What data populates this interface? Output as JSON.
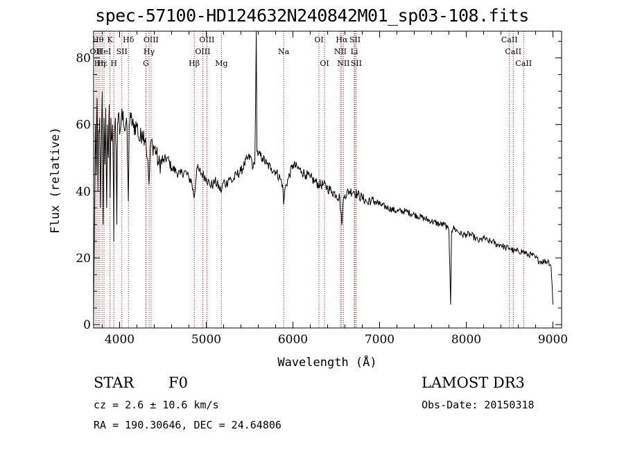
{
  "header": {
    "title": "spec-57100-HD124632N240842M01_sp03-108.fits"
  },
  "info": {
    "class_label": "STAR",
    "subclass": "F0",
    "survey": "LAMOST DR3",
    "cz": "cz = 2.6 ± 10.6 km/s",
    "obs_date": "Obs-Date: 20150318",
    "coords": "RA = 190.30646, DEC =  24.64806"
  },
  "colors": {
    "line_marker": "#cc0000",
    "spectrum": "#000000"
  },
  "chart_data": {
    "type": "line",
    "title": "spec-57100-HD124632N240842M01_sp03-108.fits",
    "xlabel": "Wavelength (Å)",
    "ylabel": "Flux (relative)",
    "xlim": [
      3700,
      9100
    ],
    "ylim": [
      -1,
      88
    ],
    "xticks": [
      4000,
      5000,
      6000,
      7000,
      8000,
      9000
    ],
    "yticks": [
      0,
      20,
      40,
      60,
      80
    ],
    "series": [
      {
        "name": "spectrum",
        "x": [
          3700,
          3710,
          3720,
          3730,
          3740,
          3750,
          3760,
          3770,
          3780,
          3790,
          3800,
          3810,
          3820,
          3830,
          3840,
          3850,
          3860,
          3870,
          3880,
          3890,
          3900,
          3910,
          3920,
          3930,
          3933,
          3940,
          3950,
          3960,
          3968,
          3975,
          3985,
          4000,
          4020,
          4040,
          4060,
          4080,
          4101,
          4110,
          4130,
          4160,
          4200,
          4230,
          4260,
          4300,
          4320,
          4340,
          4360,
          4380,
          4420,
          4450,
          4500,
          4550,
          4600,
          4650,
          4700,
          4750,
          4800,
          4830,
          4861,
          4890,
          4920,
          4960,
          5000,
          5040,
          5080,
          5100,
          5150,
          5175,
          5200,
          5230,
          5260,
          5300,
          5350,
          5400,
          5440,
          5480,
          5520,
          5540,
          5560,
          5570,
          5577,
          5585,
          5600,
          5650,
          5700,
          5750,
          5800,
          5850,
          5880,
          5893,
          5905,
          5920,
          5950,
          6000,
          6050,
          6100,
          6150,
          6200,
          6250,
          6300,
          6350,
          6400,
          6450,
          6500,
          6540,
          6563,
          6580,
          6600,
          6650,
          6700,
          6750,
          6800,
          6850,
          6870,
          6880,
          6900,
          6950,
          7000,
          7100,
          7200,
          7300,
          7400,
          7500,
          7600,
          7700,
          7750,
          7780,
          7800,
          7810,
          7820,
          7830,
          7850,
          7900,
          7950,
          8000,
          8050,
          8100,
          8150,
          8200,
          8250,
          8300,
          8350,
          8400,
          8450,
          8500,
          8550,
          8600,
          8650,
          8700,
          8750,
          8800,
          8850,
          8900,
          8950,
          8970,
          8980,
          8990,
          9000
        ],
        "y": [
          1,
          30,
          60,
          45,
          68,
          40,
          58,
          62,
          35,
          55,
          70,
          30,
          62,
          48,
          65,
          35,
          60,
          50,
          66,
          38,
          62,
          55,
          60,
          38,
          25,
          58,
          62,
          52,
          30,
          60,
          63,
          57,
          62,
          64,
          58,
          62,
          37,
          60,
          62,
          59,
          60,
          55,
          58,
          56,
          50,
          42,
          55,
          54,
          52,
          48,
          49,
          50,
          47,
          46,
          45,
          46,
          44,
          43,
          38,
          47,
          46,
          45,
          44,
          42,
          42,
          43,
          41,
          40,
          43,
          42,
          44,
          43,
          45,
          46,
          48,
          50,
          50,
          47,
          48,
          70,
          89,
          52,
          51,
          50,
          48,
          47,
          46,
          44,
          42,
          36,
          40,
          42,
          44,
          48,
          47,
          46,
          45,
          44,
          43,
          42,
          42,
          41,
          40,
          39,
          38,
          30,
          37,
          39,
          40,
          40,
          39,
          38,
          37,
          36,
          38,
          37,
          37,
          36,
          35,
          34,
          34,
          33,
          32,
          31,
          30,
          30,
          29,
          28,
          17,
          6,
          28,
          29,
          28,
          27,
          27,
          27,
          26,
          25,
          26,
          25,
          25,
          24,
          24,
          23,
          23,
          22,
          22,
          22,
          21,
          21,
          20,
          19,
          19,
          19,
          18,
          17,
          12,
          6
        ]
      }
    ],
    "line_markers": [
      {
        "wavelength": 3727,
        "label": "OII",
        "row": 1
      },
      {
        "wavelength": 3750,
        "label": "Hθ",
        "row": 0
      },
      {
        "wavelength": 3771,
        "label": "Hη",
        "row": 2
      },
      {
        "wavelength": 3798,
        "label": "Hε",
        "row": 2
      },
      {
        "wavelength": 3820,
        "label": "HeI",
        "row": 1
      },
      {
        "wavelength": 3889,
        "label": "K",
        "row": 0
      },
      {
        "wavelength": 3933,
        "label": "H",
        "row": 2
      },
      {
        "wavelength": 4026,
        "label": "SII",
        "row": 1
      },
      {
        "wavelength": 4102,
        "label": "Hδ",
        "row": 0
      },
      {
        "wavelength": 4304,
        "label": "G",
        "row": 2
      },
      {
        "wavelength": 4340,
        "label": "Hγ",
        "row": 1
      },
      {
        "wavelength": 4363,
        "label": "OIII",
        "row": 0
      },
      {
        "wavelength": 4861,
        "label": "Hβ",
        "row": 2
      },
      {
        "wavelength": 4959,
        "label": "OIII",
        "row": 1
      },
      {
        "wavelength": 5007,
        "label": "OIII",
        "row": 0
      },
      {
        "wavelength": 5175,
        "label": "Mg",
        "row": 2
      },
      {
        "wavelength": 5893,
        "label": "Na",
        "row": 1
      },
      {
        "wavelength": 6300,
        "label": "OI",
        "row": 0
      },
      {
        "wavelength": 6364,
        "label": "OI",
        "row": 2
      },
      {
        "wavelength": 6548,
        "label": "NII",
        "row": 1
      },
      {
        "wavelength": 6563,
        "label": "Hα",
        "row": 0
      },
      {
        "wavelength": 6583,
        "label": "NII",
        "row": 2
      },
      {
        "wavelength": 6708,
        "label": "Li",
        "row": 1
      },
      {
        "wavelength": 6716,
        "label": "SII",
        "row": 0
      },
      {
        "wavelength": 6731,
        "label": "SII",
        "row": 2
      },
      {
        "wavelength": 8498,
        "label": "CaII",
        "row": 0
      },
      {
        "wavelength": 8542,
        "label": "CaII",
        "row": 1
      },
      {
        "wavelength": 8662,
        "label": "CaII",
        "row": 2
      }
    ]
  }
}
